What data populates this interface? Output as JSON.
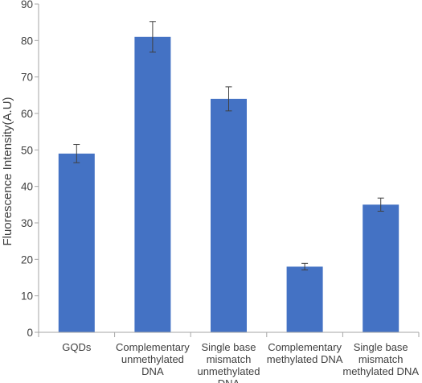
{
  "chart_data": {
    "type": "bar",
    "title": "",
    "xlabel": "",
    "ylabel": "Fluorescence Intensity(A.U)",
    "ylim": [
      0,
      90
    ],
    "yticks": [
      0,
      10,
      20,
      30,
      40,
      50,
      60,
      70,
      80,
      90
    ],
    "grid": false,
    "legend": "none",
    "bar_color": "#4472C4",
    "categories": [
      [
        "GQDs"
      ],
      [
        "Complementary",
        "unmethylated",
        "DNA"
      ],
      [
        "Single base",
        "mismatch",
        "unmethylated",
        "DNA"
      ],
      [
        "Complementary",
        "methylated DNA"
      ],
      [
        "Single base",
        "mismatch",
        "methylated DNA"
      ]
    ],
    "values": [
      49,
      81,
      64,
      18,
      35
    ],
    "errors": [
      2.5,
      4.2,
      3.3,
      0.9,
      1.8
    ]
  }
}
